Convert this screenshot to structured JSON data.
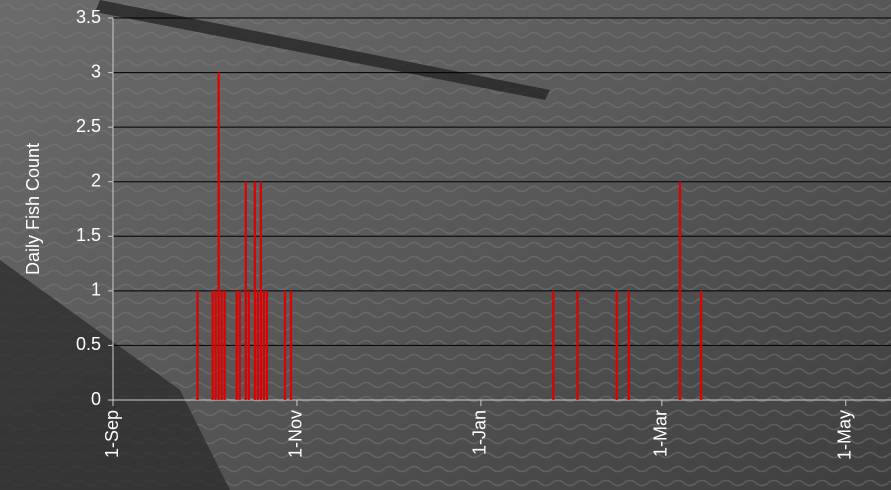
{
  "chart_data": {
    "type": "bar",
    "y_label": "Daily Fish Count",
    "x": [
      "29-Sep",
      "4-Oct",
      "5-Oct",
      "6-Oct",
      "7-Oct",
      "8-Oct",
      "12-Oct",
      "13-Oct",
      "15-Oct",
      "16-Oct",
      "18-Oct",
      "19-Oct",
      "20-Oct",
      "21-Oct",
      "22-Oct",
      "28-Oct",
      "30-Oct",
      "25-Jan",
      "2-Feb",
      "15-Feb",
      "19-Feb",
      "7-Mar",
      "14-Mar"
    ],
    "values": [
      1,
      1,
      1,
      3,
      1,
      1,
      1,
      1,
      2,
      1,
      2,
      1,
      2,
      1,
      1,
      1,
      1,
      1,
      1,
      1,
      1,
      2,
      1
    ],
    "color": "#e00000",
    "xlim": [
      "1-Sep",
      "16-May"
    ],
    "xticks": [
      "1-Sep",
      "1-Nov",
      "1-Jan",
      "1-Mar",
      "1-May"
    ],
    "ylim": [
      0,
      3.5
    ],
    "yticks": [
      0,
      0.5,
      1,
      1.5,
      2,
      2.5,
      3,
      3.5
    ],
    "grid": true
  }
}
